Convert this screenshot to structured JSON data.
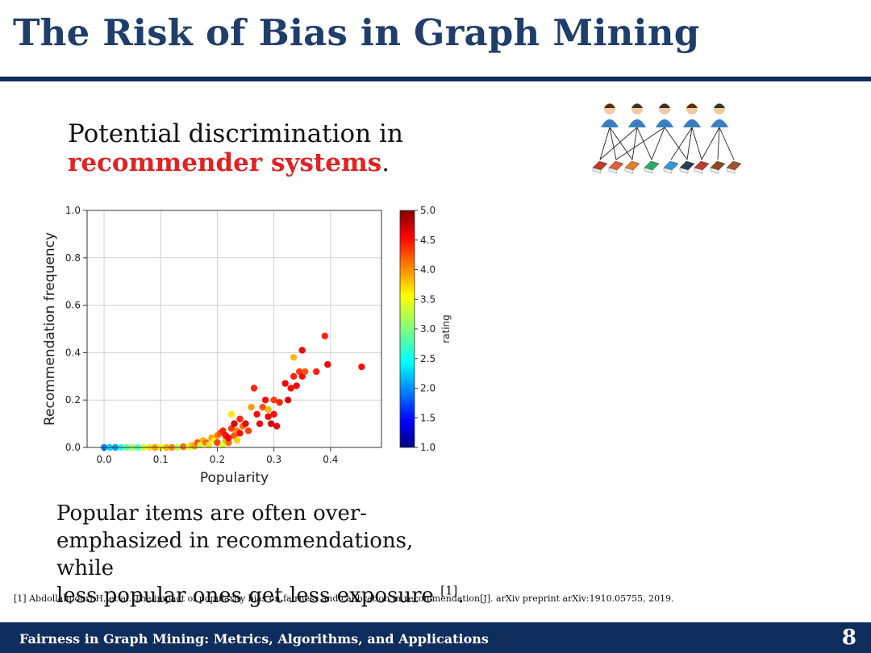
{
  "slide": {
    "title": "The Risk of Bias in Graph Mining",
    "intro_line1": "Potential discrimination in",
    "intro_highlight": "recommender systems",
    "intro_period": ".",
    "caption_line1": "Popular items are often over-",
    "caption_line2": "emphasized in recommendations, while",
    "caption_line3": "less popular ones get less exposure ",
    "caption_citation": "[1]",
    "caption_end": ".",
    "reference": "[1] Abdollahpouri H, et al. The impact of popularity bias on fairness and calibration in recommendation[J]. arXiv preprint arXiv:1910.05755, 2019.",
    "footer": "Fairness in Graph Mining: Metrics, Algorithms, and Applications",
    "page_number": "8"
  },
  "colors": {
    "title": "#1f3e6b",
    "navy": "#0f2d5c",
    "highlight": "#e02222"
  },
  "illustration": {
    "users": [
      "user-female-icon",
      "user-male-icon",
      "user-male-icon",
      "user-female-icon",
      "user-male-icon"
    ],
    "items": [
      "book-icon",
      "book-icon",
      "book-icon",
      "book-icon",
      "book-icon",
      "book-icon",
      "book-icon",
      "book-icon",
      "book-icon"
    ],
    "item_colors": [
      "#c0392b",
      "#e0603a",
      "#e67e22",
      "#27ae60",
      "#3498db",
      "#2c3e50",
      "#c0392b",
      "#8e4a1e",
      "#a0522d"
    ]
  },
  "chart_data": {
    "type": "scatter",
    "xlabel": "Popularity",
    "ylabel": "Recommendation frequency",
    "colorbar_label": "rating",
    "xlim": [
      -0.03,
      0.49
    ],
    "ylim": [
      0,
      1.0
    ],
    "xticks": [
      "0.0",
      "0.1",
      "0.2",
      "0.3",
      "0.4"
    ],
    "xtick_values": [
      0,
      0.1,
      0.2,
      0.3,
      0.4
    ],
    "yticks": [
      "0.0",
      "0.2",
      "0.4",
      "0.6",
      "0.8",
      "1.0"
    ],
    "ytick_values": [
      0,
      0.2,
      0.4,
      0.6,
      0.8,
      1.0
    ],
    "colorbar_ticks": [
      "1.0",
      "1.5",
      "2.0",
      "2.5",
      "3.0",
      "3.5",
      "4.0",
      "4.5",
      "5.0"
    ],
    "colorbar_values": [
      1.0,
      1.5,
      2.0,
      2.5,
      3.0,
      3.5,
      4.0,
      4.5,
      5.0
    ],
    "grid": true,
    "points": [
      [
        0.0,
        0,
        2.0
      ],
      [
        0.01,
        0,
        2.3
      ],
      [
        0.02,
        0,
        2.1
      ],
      [
        0.03,
        0,
        2.6
      ],
      [
        0.04,
        0,
        2.9
      ],
      [
        0.05,
        0,
        3.1
      ],
      [
        0.06,
        0,
        2.8
      ],
      [
        0.07,
        0,
        3.3
      ],
      [
        0.08,
        0,
        3.6
      ],
      [
        0.09,
        0,
        3.9
      ],
      [
        0.1,
        0,
        3.5
      ],
      [
        0.11,
        0,
        3.8
      ],
      [
        0.12,
        0,
        4.0
      ],
      [
        0.13,
        0,
        3.2
      ],
      [
        0.14,
        0.003,
        4.1
      ],
      [
        0.15,
        0.002,
        3.4
      ],
      [
        0.155,
        0.01,
        3.7
      ],
      [
        0.16,
        0.005,
        3.9
      ],
      [
        0.165,
        0.02,
        4.2
      ],
      [
        0.17,
        0.01,
        3.3
      ],
      [
        0.175,
        0.03,
        3.8
      ],
      [
        0.18,
        0.02,
        4.1
      ],
      [
        0.185,
        0.01,
        3.6
      ],
      [
        0.19,
        0.04,
        3.9
      ],
      [
        0.195,
        0.03,
        3.5
      ],
      [
        0.2,
        0.05,
        4.0
      ],
      [
        0.2,
        0.02,
        4.3
      ],
      [
        0.205,
        0.06,
        4.2
      ],
      [
        0.21,
        0.01,
        3.4
      ],
      [
        0.21,
        0.07,
        4.4
      ],
      [
        0.215,
        0.03,
        3.8
      ],
      [
        0.215,
        0.05,
        4.5
      ],
      [
        0.22,
        0.02,
        4.1
      ],
      [
        0.22,
        0.04,
        4.6
      ],
      [
        0.225,
        0.08,
        4.3
      ],
      [
        0.225,
        0.14,
        3.6
      ],
      [
        0.23,
        0.05,
        4.2
      ],
      [
        0.23,
        0.1,
        4.7
      ],
      [
        0.235,
        0.07,
        4.0
      ],
      [
        0.235,
        0.03,
        3.7
      ],
      [
        0.24,
        0.12,
        4.4
      ],
      [
        0.24,
        0.06,
        4.5
      ],
      [
        0.245,
        0.09,
        4.1
      ],
      [
        0.25,
        0.1,
        4.6
      ],
      [
        0.255,
        0.07,
        4.3
      ],
      [
        0.26,
        0.17,
        3.9
      ],
      [
        0.265,
        0.25,
        4.4
      ],
      [
        0.27,
        0.14,
        4.5
      ],
      [
        0.275,
        0.1,
        4.6
      ],
      [
        0.28,
        0.17,
        4.2
      ],
      [
        0.285,
        0.2,
        4.5
      ],
      [
        0.29,
        0.16,
        3.8
      ],
      [
        0.29,
        0.13,
        4.6
      ],
      [
        0.295,
        0.1,
        4.7
      ],
      [
        0.3,
        0.2,
        4.3
      ],
      [
        0.3,
        0.14,
        4.5
      ],
      [
        0.305,
        0.09,
        4.6
      ],
      [
        0.31,
        0.19,
        4.4
      ],
      [
        0.32,
        0.27,
        4.6
      ],
      [
        0.325,
        0.2,
        4.7
      ],
      [
        0.33,
        0.25,
        4.5
      ],
      [
        0.335,
        0.3,
        4.4
      ],
      [
        0.335,
        0.38,
        3.8
      ],
      [
        0.34,
        0.26,
        4.6
      ],
      [
        0.345,
        0.32,
        4.3
      ],
      [
        0.35,
        0.41,
        4.6
      ],
      [
        0.35,
        0.3,
        4.5
      ],
      [
        0.355,
        0.32,
        4.2
      ],
      [
        0.375,
        0.32,
        4.4
      ],
      [
        0.39,
        0.47,
        4.4
      ],
      [
        0.395,
        0.35,
        4.6
      ],
      [
        0.455,
        0.34,
        4.5
      ]
    ]
  }
}
